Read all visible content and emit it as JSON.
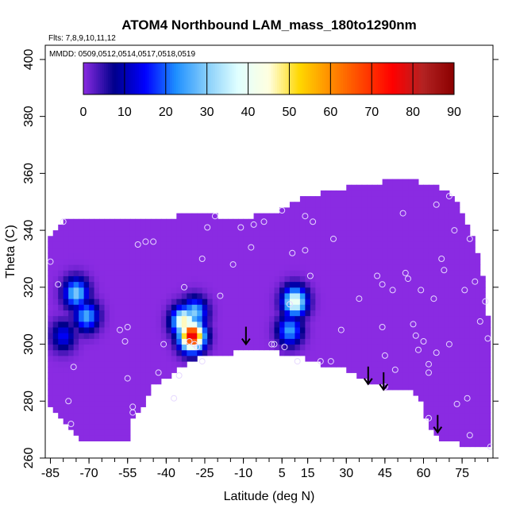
{
  "chart_data": {
    "type": "heatmap",
    "title": "ATOM4 Northbound LAM_mass_180to1290nm",
    "flights_label": "Flts: 7,8,9,10,11,12",
    "dates_label": "MMDD: 0509,0512,0514,0517,0518,0519",
    "xlabel": "Latitude (deg N)",
    "ylabel": "Theta (C)",
    "xlim": [
      -87,
      87
    ],
    "ylim": [
      260,
      405
    ],
    "x_ticks": [
      "-85",
      "-70",
      "-55",
      "-40",
      "-25",
      "-10",
      "5",
      "15",
      "30",
      "45",
      "60",
      "75"
    ],
    "y_ticks": [
      "260",
      "280",
      "300",
      "320",
      "340",
      "360",
      "380",
      "400"
    ],
    "colorbar": {
      "range": [
        0,
        90
      ],
      "tick_labels": [
        "0",
        "10",
        "20",
        "30",
        "40",
        "50",
        "60",
        "70",
        "80",
        "90"
      ],
      "colors": [
        "#8a2be2",
        "#00008b",
        "#0000ff",
        "#1e90ff",
        "#87cefa",
        "#e0ffff",
        "#ffffe0",
        "#ffd700",
        "#ff8c00",
        "#ff4500",
        "#ff0000",
        "#b22222",
        "#8b0000"
      ]
    },
    "background_value": 0,
    "background_color": "#7b2ff7",
    "hotspots": [
      {
        "lat": -75,
        "theta": 318,
        "value": 30
      },
      {
        "lat": -71,
        "theta": 310,
        "value": 26
      },
      {
        "lat": -80,
        "theta": 303,
        "value": 15
      },
      {
        "lat": -30,
        "theta": 303,
        "value": 80
      },
      {
        "lat": -33,
        "theta": 308,
        "value": 48
      },
      {
        "lat": -29,
        "theta": 311,
        "value": 30
      },
      {
        "lat": 10,
        "theta": 315,
        "value": 42
      },
      {
        "lat": 8,
        "theta": 305,
        "value": 25
      }
    ],
    "coverage_bottom": [
      [
        -86,
        280
      ],
      [
        -80,
        272
      ],
      [
        -72,
        266
      ],
      [
        -60,
        266
      ],
      [
        -54,
        266
      ],
      [
        -54,
        274
      ],
      [
        -50,
        276
      ],
      [
        -46,
        285
      ],
      [
        -40,
        288
      ],
      [
        -33,
        293
      ],
      [
        -28,
        295
      ],
      [
        -20,
        296
      ],
      [
        -10,
        298
      ],
      [
        0,
        298
      ],
      [
        5,
        297
      ],
      [
        8,
        296
      ],
      [
        14,
        295
      ],
      [
        20,
        293
      ],
      [
        30,
        291
      ],
      [
        38,
        287
      ],
      [
        45,
        285
      ],
      [
        50,
        285
      ],
      [
        56,
        284
      ],
      [
        60,
        278
      ],
      [
        62,
        270
      ],
      [
        64,
        270
      ],
      [
        66,
        266
      ],
      [
        74,
        265
      ],
      [
        82,
        264
      ],
      [
        86,
        264
      ]
    ],
    "coverage_top": [
      [
        -86,
        336
      ],
      [
        -80,
        343
      ],
      [
        -70,
        344
      ],
      [
        -55,
        344
      ],
      [
        -45,
        343
      ],
      [
        -35,
        345
      ],
      [
        -25,
        346
      ],
      [
        -15,
        344
      ],
      [
        -5,
        345
      ],
      [
        5,
        347
      ],
      [
        15,
        352
      ],
      [
        25,
        354
      ],
      [
        35,
        356
      ],
      [
        45,
        357
      ],
      [
        55,
        358
      ],
      [
        65,
        355
      ],
      [
        72,
        352
      ],
      [
        80,
        336
      ],
      [
        84,
        320
      ],
      [
        86,
        300
      ]
    ],
    "arrows": [
      {
        "lat": -9,
        "theta": 300
      },
      {
        "lat": 38.5,
        "theta": 286
      },
      {
        "lat": 44.5,
        "theta": 284
      },
      {
        "lat": 65.5,
        "theta": 269
      }
    ],
    "sample_points": [
      [
        -85,
        329
      ],
      [
        -82,
        321
      ],
      [
        -80,
        343
      ],
      [
        -78,
        280
      ],
      [
        -76,
        292
      ],
      [
        -77,
        272
      ],
      [
        -58,
        305
      ],
      [
        -56,
        301
      ],
      [
        -55,
        306
      ],
      [
        -55,
        288
      ],
      [
        -53,
        278
      ],
      [
        -53,
        276
      ],
      [
        -51,
        335
      ],
      [
        -48,
        336
      ],
      [
        -45,
        336
      ],
      [
        -43,
        290
      ],
      [
        -41,
        300
      ],
      [
        -37,
        281
      ],
      [
        -35,
        289
      ],
      [
        -33,
        320
      ],
      [
        -31,
        301
      ],
      [
        -29,
        300
      ],
      [
        -28,
        299
      ],
      [
        -26,
        294
      ],
      [
        -26,
        330
      ],
      [
        -24,
        341
      ],
      [
        -21,
        345
      ],
      [
        -19,
        317
      ],
      [
        -14,
        328
      ],
      [
        -11,
        341
      ],
      [
        -7,
        334
      ],
      [
        -6,
        342
      ],
      [
        -2,
        343
      ],
      [
        1,
        300
      ],
      [
        2,
        300
      ],
      [
        5,
        347
      ],
      [
        6,
        299
      ],
      [
        8,
        314
      ],
      [
        9,
        332
      ],
      [
        11,
        294
      ],
      [
        14,
        345
      ],
      [
        14,
        333
      ],
      [
        16,
        324
      ],
      [
        17,
        343
      ],
      [
        20,
        294
      ],
      [
        24,
        294
      ],
      [
        25,
        337
      ],
      [
        28,
        305
      ],
      [
        35,
        316
      ],
      [
        42,
        324
      ],
      [
        44,
        321
      ],
      [
        44,
        306
      ],
      [
        45,
        296
      ],
      [
        45,
        285
      ],
      [
        48,
        319
      ],
      [
        49,
        291
      ],
      [
        52,
        346
      ],
      [
        53,
        325
      ],
      [
        54,
        323
      ],
      [
        56,
        307
      ],
      [
        57,
        303
      ],
      [
        58,
        298
      ],
      [
        59,
        319
      ],
      [
        60,
        301
      ],
      [
        62,
        293
      ],
      [
        62,
        290
      ],
      [
        62,
        274
      ],
      [
        64,
        316
      ],
      [
        65,
        349
      ],
      [
        65,
        297
      ],
      [
        67,
        330
      ],
      [
        68,
        326
      ],
      [
        70,
        352
      ],
      [
        70,
        300
      ],
      [
        72,
        340
      ],
      [
        73,
        279
      ],
      [
        76,
        319
      ],
      [
        77,
        281
      ],
      [
        78,
        337
      ],
      [
        78,
        268
      ],
      [
        80,
        322
      ],
      [
        82,
        308
      ],
      [
        84,
        315
      ],
      [
        85,
        302
      ],
      [
        86,
        264
      ]
    ]
  }
}
